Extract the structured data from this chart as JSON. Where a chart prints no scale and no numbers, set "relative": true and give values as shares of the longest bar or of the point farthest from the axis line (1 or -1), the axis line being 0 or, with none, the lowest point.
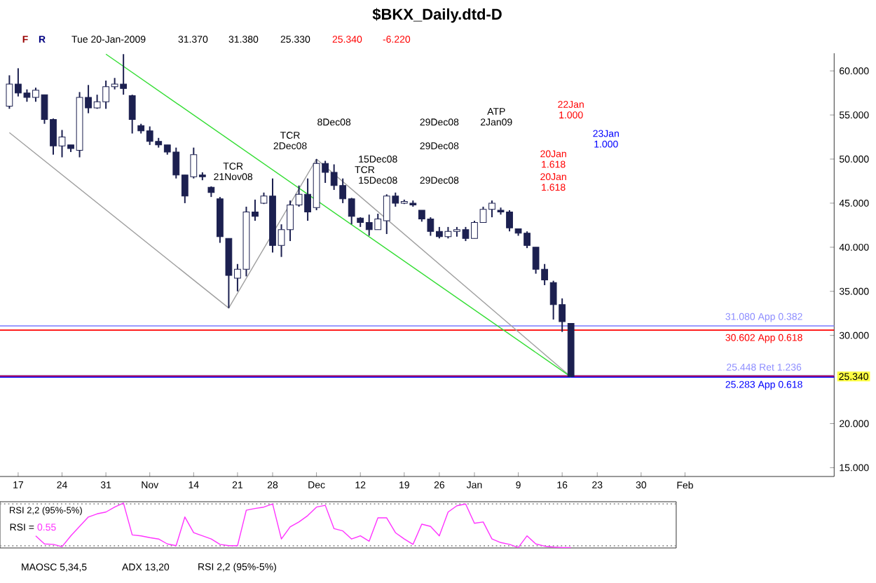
{
  "chart_data": [
    {
      "type": "candlestick",
      "title": "$BKX_Daily.dtd-D",
      "categories": [
        null,
        "17",
        null,
        null,
        null,
        null,
        "24",
        null,
        null,
        null,
        null,
        "31",
        null,
        null,
        null,
        null,
        "Nov",
        null,
        null,
        null,
        null,
        "14",
        null,
        null,
        null,
        null,
        "21",
        null,
        null,
        null,
        "28",
        null,
        null,
        null,
        null,
        "Dec",
        null,
        null,
        null,
        null,
        "12",
        null,
        null,
        null,
        null,
        "19",
        null,
        null,
        null,
        "26",
        null,
        null,
        null,
        "Jan",
        null,
        null,
        null,
        null,
        "9",
        null,
        null,
        null,
        null,
        "16",
        null,
        null,
        null,
        "23",
        null,
        null,
        null,
        null,
        "30",
        null,
        null,
        null,
        null,
        "Feb",
        null,
        null,
        null,
        null,
        null,
        null,
        null,
        null,
        null,
        null,
        null,
        null,
        null,
        null,
        null,
        null,
        null
      ],
      "ohlc": [
        [
          56,
          59.5,
          55.7,
          58.5
        ],
        [
          58.5,
          60.3,
          57.1,
          57.5
        ],
        [
          57.5,
          57.9,
          56.5,
          57
        ],
        [
          57,
          58.1,
          56.5,
          57.8
        ],
        [
          57.3,
          57.3,
          54,
          54.5
        ],
        [
          54.5,
          54.6,
          50.5,
          51.5
        ],
        [
          51.5,
          53.3,
          50.2,
          52.5
        ],
        [
          51.6,
          51.6,
          50.8,
          51.2
        ],
        [
          51,
          57.6,
          50.2,
          57
        ],
        [
          57,
          58.4,
          55.2,
          55.8
        ],
        [
          55.8,
          57.3,
          55.7,
          56.5
        ],
        [
          56.5,
          58.9,
          55.7,
          58.2
        ],
        [
          58.2,
          59.2,
          57.9,
          58.5
        ],
        [
          58.5,
          61.9,
          57.3,
          58
        ],
        [
          57.2,
          57.3,
          52.9,
          54.5
        ],
        [
          53.8,
          54,
          52.9,
          53.2
        ],
        [
          53.2,
          53.7,
          51.6,
          52
        ],
        [
          52,
          52.4,
          51.3,
          51.6
        ],
        [
          51.6,
          51.6,
          50.5,
          50.8
        ],
        [
          50.8,
          51.3,
          47.8,
          48.2
        ],
        [
          48.2,
          48.2,
          45,
          45.8
        ],
        [
          48,
          51.3,
          47.8,
          50.5
        ],
        [
          48.2,
          48.5,
          47.6,
          48
        ],
        [
          46.8,
          46.9,
          45.7,
          46.2
        ],
        [
          45.5,
          45.7,
          40.5,
          41.2
        ],
        [
          41,
          41,
          33.1,
          36.8
        ],
        [
          36.5,
          38.1,
          35,
          37.5
        ],
        [
          37.5,
          44.6,
          36.7,
          44
        ],
        [
          44,
          45.4,
          43,
          43.5
        ],
        [
          45,
          46.2,
          44.9,
          45.8
        ],
        [
          45.8,
          47.8,
          39.4,
          40.2
        ],
        [
          40.2,
          42.6,
          38.9,
          42
        ],
        [
          42,
          45.3,
          40.7,
          44.8
        ],
        [
          44.8,
          47,
          44.6,
          46
        ],
        [
          46,
          47.8,
          43,
          44
        ],
        [
          44.5,
          50,
          44.2,
          49.5
        ],
        [
          49.5,
          49.8,
          47.3,
          48.5
        ],
        [
          48.5,
          49.4,
          46.5,
          47
        ],
        [
          47,
          47.8,
          45,
          45.5
        ],
        [
          45.5,
          45.6,
          42.6,
          43.5
        ],
        [
          43.3,
          43.4,
          42.3,
          42.8
        ],
        [
          42.8,
          43.7,
          41.3,
          42
        ],
        [
          42,
          43.8,
          42,
          43.2
        ],
        [
          43,
          46,
          41.5,
          45.8
        ],
        [
          45.8,
          46.2,
          44.6,
          45
        ],
        [
          45,
          45.4,
          44.9,
          45.2
        ],
        [
          45,
          45.3,
          44.6,
          44.8
        ],
        [
          44.2,
          44.2,
          42.9,
          43.2
        ],
        [
          43.2,
          43.4,
          41.3,
          41.8
        ],
        [
          41.8,
          42.3,
          41,
          41.2
        ],
        [
          41.2,
          42.3,
          41,
          41.8
        ],
        [
          41.8,
          42.3,
          41.2,
          42
        ],
        [
          42,
          42.3,
          40.7,
          41
        ],
        [
          41,
          43,
          41,
          42.8
        ],
        [
          42.8,
          44.6,
          42.8,
          44.3
        ],
        [
          44.3,
          45.3,
          43.4,
          45
        ],
        [
          44.2,
          44.5,
          43.7,
          44
        ],
        [
          44,
          44.2,
          41.8,
          42.2
        ],
        [
          42.1,
          42.1,
          41.3,
          41.6
        ],
        [
          41.6,
          41.8,
          39.9,
          40.2
        ],
        [
          40,
          40,
          37,
          37.5
        ],
        [
          37.5,
          38.1,
          35.7,
          36.3
        ],
        [
          36,
          36.2,
          31.8,
          33.5
        ],
        [
          33.5,
          34.2,
          30.4,
          31.56
        ],
        [
          31.37,
          31.38,
          25.33,
          25.34
        ],
        null,
        null,
        null,
        null,
        null,
        null,
        null,
        null,
        null,
        null,
        null,
        null,
        null,
        null,
        null,
        null,
        null,
        null,
        null,
        null,
        null,
        null,
        null,
        null,
        null,
        null,
        null,
        null,
        null,
        null
      ],
      "color": "#1c2050",
      "ylim": [
        14,
        62
      ],
      "yticks": [
        {
          "value": 15,
          "label": "15.000"
        },
        {
          "value": 20,
          "label": "20.000"
        },
        {
          "value": 30,
          "label": "30.000"
        },
        {
          "value": 35,
          "label": "35.000"
        },
        {
          "value": 40,
          "label": "40.000"
        },
        {
          "value": 45,
          "label": "45.000"
        },
        {
          "value": 50,
          "label": "50.000"
        },
        {
          "value": 55,
          "label": "55.000"
        },
        {
          "value": 60,
          "label": "60.000"
        }
      ],
      "series": [
        {
          "type": "line",
          "color": "#a0a0a0",
          "values": [
            53,
            null,
            null,
            null,
            null,
            null,
            null,
            null,
            null,
            null,
            null,
            null,
            null,
            null,
            null,
            null,
            null,
            null,
            null,
            null,
            null,
            null,
            null,
            null,
            null,
            33.1,
            null,
            null,
            null,
            null,
            null,
            null,
            null,
            null,
            null,
            50,
            null,
            null,
            null,
            null,
            null,
            null,
            null,
            null,
            null,
            null,
            null,
            null,
            null,
            null,
            null,
            null,
            null,
            null,
            null,
            null,
            null,
            null,
            null,
            null,
            null,
            null,
            null,
            null,
            25.3,
            null,
            null,
            null,
            null,
            null,
            null,
            null,
            null,
            null,
            null,
            null,
            null,
            null,
            null,
            null,
            null,
            null,
            null,
            null,
            null,
            null,
            null,
            null,
            null,
            null,
            null,
            null,
            null,
            null,
            null
          ]
        },
        {
          "type": "line",
          "color": "#33dd33",
          "values": [
            null,
            null,
            null,
            null,
            null,
            null,
            null,
            null,
            null,
            null,
            null,
            61.9,
            null,
            null,
            null,
            null,
            null,
            null,
            null,
            null,
            null,
            null,
            null,
            null,
            null,
            null,
            null,
            null,
            null,
            null,
            null,
            null,
            null,
            null,
            null,
            null,
            null,
            null,
            null,
            null,
            null,
            null,
            null,
            null,
            null,
            null,
            null,
            null,
            null,
            null,
            null,
            null,
            null,
            null,
            null,
            null,
            null,
            null,
            null,
            null,
            null,
            null,
            null,
            null,
            25.3,
            null,
            null,
            null,
            null,
            null,
            null,
            null,
            null,
            null,
            null,
            null,
            null,
            null,
            null,
            null,
            null,
            null,
            null,
            null,
            null,
            null,
            null,
            null,
            null,
            null,
            null,
            null,
            null,
            null,
            null
          ]
        }
      ],
      "ref_lines": [
        {
          "axis": "y",
          "value": 31.08,
          "label": "31.080 App 0.382",
          "color": "#8c8cff"
        },
        {
          "axis": "y",
          "value": 30.6,
          "label": "30.602 App 0.618",
          "color": "#ff0000"
        },
        {
          "axis": "y",
          "value": 25.45,
          "label": "25.448 Ret 1.236",
          "color": "#8c8cff"
        },
        {
          "axis": "y",
          "value": 25.38,
          "color": "#ff0000"
        },
        {
          "axis": "y",
          "value": 25.28,
          "label": "25.283 App 0.618",
          "color": "#0000ff"
        }
      ],
      "annotations": [
        "F",
        "R",
        "Tue 20-Jan-2009",
        "31.370",
        "31.380",
        "25.330",
        "25.340",
        "-6.220",
        "TCR",
        "21Nov08",
        "TCR",
        "2Dec08",
        "8Dec08",
        "15Dec08",
        "TCR",
        "15Dec08",
        "29Dec08",
        "29Dec08",
        "29Dec08",
        "ATP",
        "2Jan09",
        "22Jan",
        "1.000",
        "23Jan",
        "1.000",
        "20Jan",
        "1.618",
        "20Jan",
        "1.618",
        "25.340"
      ]
    },
    {
      "type": "line",
      "title": "RSI 2,2 (95%-5%)",
      "categories": [
        null,
        null,
        null,
        null,
        null,
        null,
        null,
        null,
        null,
        null,
        null,
        null,
        null,
        null,
        null,
        null,
        null,
        null,
        null,
        null,
        null,
        null,
        null,
        null,
        null,
        null,
        null,
        null,
        null,
        null,
        null,
        null,
        null,
        null,
        null,
        null,
        null,
        null,
        null,
        null,
        null,
        null,
        null,
        null,
        null,
        null,
        null,
        null,
        null,
        null,
        null,
        null,
        null,
        null,
        null,
        null,
        null,
        null,
        null,
        null,
        null,
        null,
        null,
        null,
        null,
        null,
        null,
        null,
        null,
        null,
        null,
        null,
        null,
        null,
        null,
        null,
        null
      ],
      "values": [
        null,
        null,
        null,
        0.27,
        0.09,
        0.08,
        0.03,
        0.27,
        null,
        0.69,
        0.76,
        0.8,
        0.91,
        1,
        0.29,
        0.27,
        0.23,
        0.2,
        0.09,
        0.05,
        0.69,
        0.34,
        0.27,
        0.2,
        0.08,
        0.05,
        0.05,
        0.84,
        0.88,
        0.91,
        0.98,
        0.2,
        0.47,
        0.58,
        0.72,
        0.91,
        0.95,
        0.43,
        0.38,
        0.2,
        0.27,
        0.15,
        0.67,
        0.67,
        0.34,
        0.2,
        0.08,
        0.53,
        0.48,
        0.27,
        0.8,
        0.94,
        0.98,
        0.55,
        0.58,
        0.2,
        0.12,
        0.08,
        0.01,
        0.27,
        0.09,
        0.04,
        0.02,
        0.01,
        0.01,
        null,
        null,
        null,
        null,
        null,
        null,
        null,
        null,
        null,
        null,
        null,
        null
      ],
      "color": "#ff33ff",
      "relative": true,
      "ref_lines": [
        {
          "axis": "y",
          "value": 0.98,
          "color": "#909090",
          "line_style": "dotted"
        },
        {
          "axis": "y",
          "value": 0.05,
          "color": "#909090",
          "line_style": "dotted"
        }
      ],
      "annotations": [
        "RSI =",
        "0.55",
        "MAOSC 5,34,5",
        "ADX 13,20",
        "RSI 2,2 (95%-5%)"
      ]
    }
  ]
}
